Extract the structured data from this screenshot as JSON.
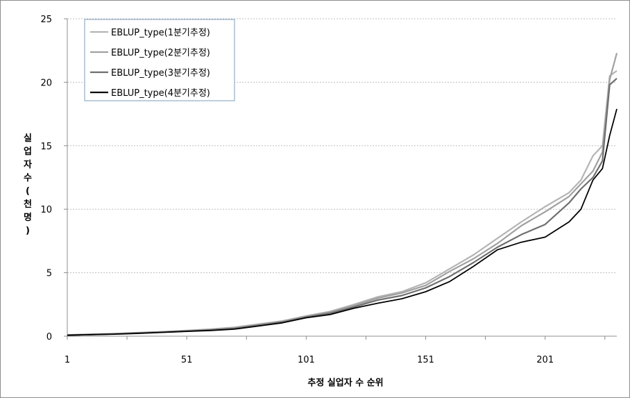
{
  "chart_data": {
    "type": "line",
    "xlabel": "추정 실업자 수 순위",
    "ylabel": "실업자수(천명)",
    "x_ticks": [
      "1",
      "51",
      "101",
      "151",
      "201"
    ],
    "y_ticks": [
      "0",
      "5",
      "10",
      "15",
      "20",
      "25"
    ],
    "xlim": [
      1,
      231
    ],
    "ylim": [
      0,
      25
    ],
    "grid": "horizontal",
    "legend_position": "top-left",
    "series": [
      {
        "name": "EBLUP_type(1분기추정)",
        "color": "#b4b4b4",
        "x": [
          1,
          11,
          21,
          31,
          41,
          51,
          61,
          71,
          81,
          91,
          101,
          111,
          121,
          131,
          141,
          151,
          161,
          171,
          181,
          191,
          201,
          211,
          216,
          221,
          225,
          228,
          231
        ],
        "y": [
          0.1,
          0.15,
          0.2,
          0.28,
          0.35,
          0.45,
          0.55,
          0.7,
          0.95,
          1.2,
          1.6,
          1.95,
          2.5,
          3.1,
          3.5,
          4.2,
          5.3,
          6.4,
          7.7,
          9.0,
          10.2,
          11.3,
          12.3,
          14.2,
          15.0,
          20.5,
          20.9
        ]
      },
      {
        "name": "EBLUP_type(2분기추정)",
        "color": "#a0a0a0",
        "x": [
          1,
          11,
          21,
          31,
          41,
          51,
          61,
          71,
          81,
          91,
          101,
          111,
          121,
          131,
          141,
          151,
          161,
          171,
          181,
          191,
          201,
          211,
          216,
          221,
          225,
          228,
          231
        ],
        "y": [
          0.1,
          0.14,
          0.19,
          0.27,
          0.34,
          0.43,
          0.52,
          0.65,
          0.9,
          1.15,
          1.55,
          1.9,
          2.4,
          3.0,
          3.4,
          4.0,
          5.1,
          6.1,
          7.3,
          8.7,
          9.8,
          11.0,
          12.0,
          13.0,
          14.5,
          20.2,
          22.3
        ]
      },
      {
        "name": "EBLUP_type(3분기추정)",
        "color": "#6e6e6e",
        "x": [
          1,
          11,
          21,
          31,
          41,
          51,
          61,
          71,
          81,
          91,
          101,
          111,
          121,
          131,
          141,
          151,
          161,
          171,
          181,
          191,
          201,
          211,
          216,
          221,
          225,
          228,
          231
        ],
        "y": [
          0.08,
          0.13,
          0.18,
          0.25,
          0.32,
          0.4,
          0.48,
          0.6,
          0.85,
          1.1,
          1.5,
          1.8,
          2.3,
          2.85,
          3.2,
          3.8,
          4.7,
          5.8,
          7.0,
          8.0,
          8.8,
          10.5,
          11.6,
          12.5,
          13.8,
          19.8,
          20.3
        ]
      },
      {
        "name": "EBLUP_type(4분기추정)",
        "color": "#000000",
        "x": [
          1,
          11,
          21,
          31,
          41,
          51,
          61,
          71,
          81,
          91,
          101,
          111,
          121,
          131,
          141,
          151,
          161,
          171,
          181,
          191,
          201,
          211,
          216,
          221,
          225,
          228,
          231
        ],
        "y": [
          0.07,
          0.12,
          0.16,
          0.22,
          0.3,
          0.38,
          0.45,
          0.55,
          0.8,
          1.05,
          1.45,
          1.7,
          2.2,
          2.6,
          2.95,
          3.5,
          4.3,
          5.5,
          6.8,
          7.4,
          7.8,
          9.0,
          10.0,
          12.3,
          13.2,
          15.8,
          17.9
        ]
      }
    ]
  }
}
